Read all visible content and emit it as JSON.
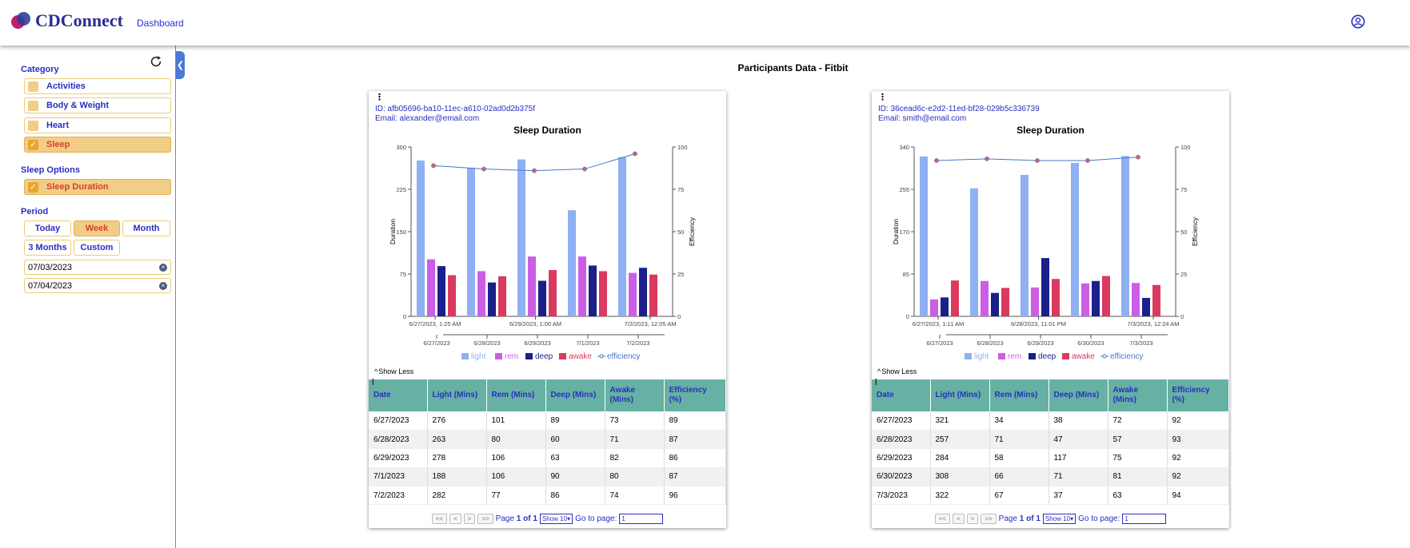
{
  "header": {
    "brand": "CDConnect",
    "nav_dashboard": "Dashboard"
  },
  "sidebar": {
    "category_title": "Category",
    "categories": [
      {
        "label": "Activities",
        "active": false
      },
      {
        "label": "Body & Weight",
        "active": false
      },
      {
        "label": "Heart",
        "active": false
      },
      {
        "label": "Sleep",
        "active": true
      }
    ],
    "sleep_options_title": "Sleep Options",
    "sleep_options": [
      {
        "label": "Sleep Duration",
        "active": true
      }
    ],
    "period_title": "Period",
    "periods": [
      "Today",
      "Week",
      "Month",
      "3 Months",
      "Custom"
    ],
    "period_selected": "Week",
    "start_date": "07/03/2023",
    "end_date": "07/04/2023"
  },
  "main": {
    "title": "Participants Data - Fitbit"
  },
  "colors": {
    "light": "#8fb0f2",
    "rem": "#cc5ee6",
    "deep": "#1b1f8a",
    "awake": "#d93a5e",
    "efficiency": "#4a78c8",
    "table_header": "#66b1a3",
    "accent": "#2a2ec0"
  },
  "show_less": "Show Less",
  "table_headers": [
    "Date",
    "Light (Mins)",
    "Rem (Mins)",
    "Deep (Mins)",
    "Awake (Mins)",
    "Efficiency (%)"
  ],
  "pager": {
    "page_prefix": "Page",
    "page_current": "1",
    "page_of": "of",
    "page_total": "1",
    "show": "Show 10",
    "goto": "Go to page:",
    "goto_value": "1",
    "first": "<<",
    "prev": "<",
    "next": ">",
    "last": ">>"
  },
  "participants": [
    {
      "id": "ID: afb05696-ba10-11ec-a610-02ad0d2b375f",
      "email": "Email: alexander@email.com",
      "chart_data": {
        "type": "bar",
        "title": "Sleep Duration",
        "ylabel": "Duration",
        "y2label": "Efficiency",
        "ylim": [
          0,
          300
        ],
        "yticks": [
          0,
          75,
          150,
          225,
          300
        ],
        "y2lim": [
          0,
          100
        ],
        "y2ticks": [
          0,
          25,
          50,
          75,
          100
        ],
        "categories": [
          "6/27/2023",
          "6/28/2023",
          "6/29/2023",
          "7/1/2023",
          "7/2/2023"
        ],
        "top_axis_labels": [
          "6/27/2023, 1:25 AM",
          "6/29/2023, 1:00 AM",
          "7/2/2023, 12:05 AM"
        ],
        "series": [
          {
            "name": "light",
            "values": [
              276,
              263,
              278,
              188,
              282
            ]
          },
          {
            "name": "rem",
            "values": [
              101,
              80,
              106,
              106,
              77
            ]
          },
          {
            "name": "deep",
            "values": [
              89,
              60,
              63,
              90,
              86
            ]
          },
          {
            "name": "awake",
            "values": [
              73,
              71,
              82,
              80,
              74
            ]
          },
          {
            "name": "efficiency",
            "values": [
              89,
              87,
              86,
              87,
              96
            ],
            "axis": "right",
            "kind": "line"
          }
        ],
        "legend": "bottom"
      },
      "rows": [
        [
          "6/27/2023",
          "276",
          "101",
          "89",
          "73",
          "89"
        ],
        [
          "6/28/2023",
          "263",
          "80",
          "60",
          "71",
          "87"
        ],
        [
          "6/29/2023",
          "278",
          "106",
          "63",
          "82",
          "86"
        ],
        [
          "7/1/2023",
          "188",
          "106",
          "90",
          "80",
          "87"
        ],
        [
          "7/2/2023",
          "282",
          "77",
          "86",
          "74",
          "96"
        ]
      ]
    },
    {
      "id": "ID: 36cead6c-e2d2-11ed-bf28-029b5c336739",
      "email": "Email: smith@email.com",
      "chart_data": {
        "type": "bar",
        "title": "Sleep Duration",
        "ylabel": "Duration",
        "y2label": "Efficiency",
        "ylim": [
          0,
          340
        ],
        "yticks": [
          0,
          85,
          170,
          255,
          340
        ],
        "y2lim": [
          0,
          100
        ],
        "y2ticks": [
          0,
          25,
          50,
          75,
          100
        ],
        "categories": [
          "6/27/2023",
          "6/28/2023",
          "6/29/2023",
          "6/30/2023",
          "7/3/2023"
        ],
        "top_axis_labels": [
          "6/27/2023, 1:11 AM",
          "6/28/2023, 11:01 PM",
          "7/3/2023, 12:24 AM"
        ],
        "series": [
          {
            "name": "light",
            "values": [
              321,
              257,
              284,
              308,
              322
            ]
          },
          {
            "name": "rem",
            "values": [
              34,
              71,
              58,
              66,
              67
            ]
          },
          {
            "name": "deep",
            "values": [
              38,
              47,
              117,
              71,
              37
            ]
          },
          {
            "name": "awake",
            "values": [
              72,
              57,
              75,
              81,
              63
            ]
          },
          {
            "name": "efficiency",
            "values": [
              92,
              93,
              92,
              92,
              94
            ],
            "axis": "right",
            "kind": "line"
          }
        ],
        "legend": "bottom"
      },
      "rows": [
        [
          "6/27/2023",
          "321",
          "34",
          "38",
          "72",
          "92"
        ],
        [
          "6/28/2023",
          "257",
          "71",
          "47",
          "57",
          "93"
        ],
        [
          "6/29/2023",
          "284",
          "58",
          "117",
          "75",
          "92"
        ],
        [
          "6/30/2023",
          "308",
          "66",
          "71",
          "81",
          "92"
        ],
        [
          "7/3/2023",
          "322",
          "67",
          "37",
          "63",
          "94"
        ]
      ]
    }
  ]
}
